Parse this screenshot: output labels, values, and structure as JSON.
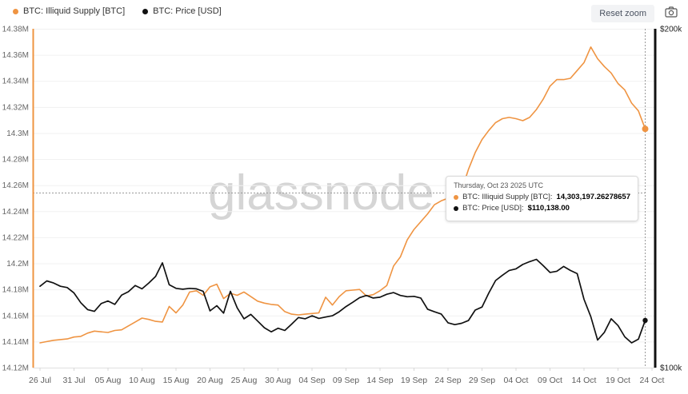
{
  "legend": [
    {
      "label": "BTC: Illiquid Supply [BTC]",
      "color": "#EF9442"
    },
    {
      "label": "BTC: Price [USD]",
      "color": "#111111"
    }
  ],
  "toolbar": {
    "reset_zoom_label": "Reset zoom",
    "camera_icon": "camera-icon"
  },
  "watermark": "glassnode",
  "tooltip": {
    "date": "Thursday, Oct 23 2025 UTC",
    "rows": [
      {
        "label": "BTC: Illiquid Supply [BTC]:",
        "value": "14,303,197.26278657",
        "color": "#EF9442"
      },
      {
        "label": "BTC: Price [USD]:",
        "value": "$110,138.00",
        "color": "#111111"
      }
    ]
  },
  "chart_data": {
    "type": "line",
    "title": "",
    "grid": "horizontal",
    "legend_position": "top-left",
    "y_left": {
      "scale": "linear",
      "min": 14.12,
      "max": 14.38,
      "axis_color": "#EF9442",
      "ticks": [
        {
          "v": 14.38,
          "label": "14.38M"
        },
        {
          "v": 14.36,
          "label": "14.36M"
        },
        {
          "v": 14.34,
          "label": "14.34M"
        },
        {
          "v": 14.32,
          "label": "14.32M"
        },
        {
          "v": 14.3,
          "label": "14.3M"
        },
        {
          "v": 14.28,
          "label": "14.28M"
        },
        {
          "v": 14.26,
          "label": "14.26M"
        },
        {
          "v": 14.24,
          "label": "14.24M"
        },
        {
          "v": 14.22,
          "label": "14.22M"
        },
        {
          "v": 14.2,
          "label": "14.2M"
        },
        {
          "v": 14.18,
          "label": "14.18M"
        },
        {
          "v": 14.16,
          "label": "14.16M"
        },
        {
          "v": 14.14,
          "label": "14.14M"
        },
        {
          "v": 14.12,
          "label": "14.12M"
        }
      ]
    },
    "y_right": {
      "scale": "log",
      "min": 100,
      "max": 200,
      "axis_color": "#111111",
      "ticks": [
        {
          "v": 200,
          "label": "$200k"
        },
        {
          "v": 100,
          "label": "$100k"
        }
      ]
    },
    "x_axis": {
      "unit": "days from 26 Jul 2025",
      "ticks": [
        {
          "d": 0,
          "label": "26 Jul"
        },
        {
          "d": 5,
          "label": "31 Jul"
        },
        {
          "d": 10,
          "label": "05 Aug"
        },
        {
          "d": 15,
          "label": "10 Aug"
        },
        {
          "d": 20,
          "label": "15 Aug"
        },
        {
          "d": 25,
          "label": "20 Aug"
        },
        {
          "d": 30,
          "label": "25 Aug"
        },
        {
          "d": 35,
          "label": "30 Aug"
        },
        {
          "d": 40,
          "label": "04 Sep"
        },
        {
          "d": 45,
          "label": "09 Sep"
        },
        {
          "d": 50,
          "label": "14 Sep"
        },
        {
          "d": 55,
          "label": "19 Sep"
        },
        {
          "d": 60,
          "label": "24 Sep"
        },
        {
          "d": 65,
          "label": "29 Sep"
        },
        {
          "d": 70,
          "label": "04 Oct"
        },
        {
          "d": 75,
          "label": "09 Oct"
        },
        {
          "d": 80,
          "label": "14 Oct"
        },
        {
          "d": 85,
          "label": "19 Oct"
        },
        {
          "d": 90,
          "label": "24 Oct"
        }
      ]
    },
    "crosshair": {
      "x_day": 89,
      "y_left_value": 14.254
    },
    "series": [
      {
        "name": "BTC: Illiquid Supply [BTC]",
        "color": "#EF9442",
        "axis": "left",
        "width": 1.6,
        "end_dot": true,
        "end_dot_r": 4,
        "points": [
          [
            0,
            14.139
          ],
          [
            1,
            14.14
          ],
          [
            2,
            14.141
          ],
          [
            3,
            14.1415
          ],
          [
            4,
            14.142
          ],
          [
            5,
            14.1435
          ],
          [
            6,
            14.144
          ],
          [
            7,
            14.1465
          ],
          [
            8,
            14.148
          ],
          [
            9,
            14.1475
          ],
          [
            10,
            14.147
          ],
          [
            11,
            14.1485
          ],
          [
            12,
            14.149
          ],
          [
            13,
            14.152
          ],
          [
            14,
            14.155
          ],
          [
            15,
            14.158
          ],
          [
            16,
            14.157
          ],
          [
            17,
            14.1555
          ],
          [
            18,
            14.155
          ],
          [
            19,
            14.167
          ],
          [
            20,
            14.162
          ],
          [
            21,
            14.168
          ],
          [
            22,
            14.178
          ],
          [
            23,
            14.179
          ],
          [
            24,
            14.1755
          ],
          [
            25,
            14.182
          ],
          [
            26,
            14.184
          ],
          [
            27,
            14.173
          ],
          [
            28,
            14.177
          ],
          [
            29,
            14.1755
          ],
          [
            30,
            14.178
          ],
          [
            31,
            14.1745
          ],
          [
            32,
            14.171
          ],
          [
            33,
            14.1695
          ],
          [
            34,
            14.1685
          ],
          [
            35,
            14.168
          ],
          [
            36,
            14.163
          ],
          [
            37,
            14.161
          ],
          [
            38,
            14.1605
          ],
          [
            39,
            14.161
          ],
          [
            40,
            14.1615
          ],
          [
            41,
            14.162
          ],
          [
            42,
            14.174
          ],
          [
            43,
            14.168
          ],
          [
            44,
            14.1745
          ],
          [
            45,
            14.179
          ],
          [
            46,
            14.1795
          ],
          [
            47,
            14.18
          ],
          [
            48,
            14.175
          ],
          [
            49,
            14.176
          ],
          [
            50,
            14.179
          ],
          [
            51,
            14.183
          ],
          [
            52,
            14.198
          ],
          [
            53,
            14.205
          ],
          [
            54,
            14.218
          ],
          [
            55,
            14.226
          ],
          [
            56,
            14.232
          ],
          [
            57,
            14.238
          ],
          [
            58,
            14.245
          ],
          [
            59,
            14.248
          ],
          [
            60,
            14.25
          ],
          [
            61,
            14.254
          ],
          [
            62,
            14.256
          ],
          [
            63,
            14.272
          ],
          [
            64,
            14.285
          ],
          [
            65,
            14.295
          ],
          [
            66,
            14.302
          ],
          [
            67,
            14.308
          ],
          [
            68,
            14.311
          ],
          [
            69,
            14.312
          ],
          [
            70,
            14.311
          ],
          [
            71,
            14.3095
          ],
          [
            72,
            14.312
          ],
          [
            73,
            14.318
          ],
          [
            74,
            14.326
          ],
          [
            75,
            14.336
          ],
          [
            76,
            14.341
          ],
          [
            77,
            14.341
          ],
          [
            78,
            14.342
          ],
          [
            79,
            14.348
          ],
          [
            80,
            14.354
          ],
          [
            81,
            14.366
          ],
          [
            82,
            14.357
          ],
          [
            83,
            14.351
          ],
          [
            84,
            14.346
          ],
          [
            85,
            14.338
          ],
          [
            86,
            14.333
          ],
          [
            87,
            14.323
          ],
          [
            88,
            14.317
          ],
          [
            89,
            14.3032
          ]
        ]
      },
      {
        "name": "BTC: Price [USD]",
        "color": "#111111",
        "axis": "right",
        "width": 1.7,
        "end_dot": true,
        "end_dot_r": 3.2,
        "points": [
          [
            0,
            118.1
          ],
          [
            1,
            119.4
          ],
          [
            2,
            118.9
          ],
          [
            3,
            118.1
          ],
          [
            4,
            117.8
          ],
          [
            5,
            116.5
          ],
          [
            6,
            114.2
          ],
          [
            7,
            112.6
          ],
          [
            8,
            112.2
          ],
          [
            9,
            114.0
          ],
          [
            10,
            114.6
          ],
          [
            11,
            113.8
          ],
          [
            12,
            116.0
          ],
          [
            13,
            116.8
          ],
          [
            14,
            118.3
          ],
          [
            15,
            117.5
          ],
          [
            16,
            118.9
          ],
          [
            17,
            120.5
          ],
          [
            18,
            123.9
          ],
          [
            19,
            118.5
          ],
          [
            20,
            117.6
          ],
          [
            21,
            117.4
          ],
          [
            22,
            117.6
          ],
          [
            23,
            117.5
          ],
          [
            24,
            116.9
          ],
          [
            25,
            112.3
          ],
          [
            26,
            113.5
          ],
          [
            27,
            111.8
          ],
          [
            28,
            116.9
          ],
          [
            29,
            113.0
          ],
          [
            30,
            110.5
          ],
          [
            31,
            111.5
          ],
          [
            32,
            110.0
          ],
          [
            33,
            108.5
          ],
          [
            34,
            107.6
          ],
          [
            35,
            108.4
          ],
          [
            36,
            107.9
          ],
          [
            37,
            109.3
          ],
          [
            38,
            110.8
          ],
          [
            39,
            110.5
          ],
          [
            40,
            111.2
          ],
          [
            41,
            110.6
          ],
          [
            42,
            110.9
          ],
          [
            43,
            111.2
          ],
          [
            44,
            112.1
          ],
          [
            45,
            113.3
          ],
          [
            46,
            114.3
          ],
          [
            47,
            115.4
          ],
          [
            48,
            115.9
          ],
          [
            49,
            115.3
          ],
          [
            50,
            115.5
          ],
          [
            51,
            116.2
          ],
          [
            52,
            116.6
          ],
          [
            53,
            115.9
          ],
          [
            54,
            115.6
          ],
          [
            55,
            115.7
          ],
          [
            56,
            115.3
          ],
          [
            57,
            112.7
          ],
          [
            58,
            112.1
          ],
          [
            59,
            111.6
          ],
          [
            60,
            109.6
          ],
          [
            61,
            109.2
          ],
          [
            62,
            109.5
          ],
          [
            63,
            110.1
          ],
          [
            64,
            112.5
          ],
          [
            65,
            113.2
          ],
          [
            66,
            116.5
          ],
          [
            67,
            119.5
          ],
          [
            68,
            120.8
          ],
          [
            69,
            122.0
          ],
          [
            70,
            122.4
          ],
          [
            71,
            123.5
          ],
          [
            72,
            124.2
          ],
          [
            73,
            124.8
          ],
          [
            74,
            123.2
          ],
          [
            75,
            121.5
          ],
          [
            76,
            121.8
          ],
          [
            77,
            123.0
          ],
          [
            78,
            122.0
          ],
          [
            79,
            121.2
          ],
          [
            80,
            115.0
          ],
          [
            81,
            111.0
          ],
          [
            82,
            105.8
          ],
          [
            83,
            107.5
          ],
          [
            84,
            110.5
          ],
          [
            85,
            109.0
          ],
          [
            86,
            106.5
          ],
          [
            87,
            105.2
          ],
          [
            88,
            106.0
          ],
          [
            89,
            110.138
          ]
        ]
      }
    ],
    "colors": {
      "gridline": "#f1f1f1",
      "x_axis_line": "#e0e0e0",
      "tick_mark": "#d8d8d8",
      "crosshair": "#999999",
      "tick_label": "#666666",
      "x_label": "#606060",
      "right_label": "#222222",
      "watermark": "#d5d5d5"
    }
  }
}
